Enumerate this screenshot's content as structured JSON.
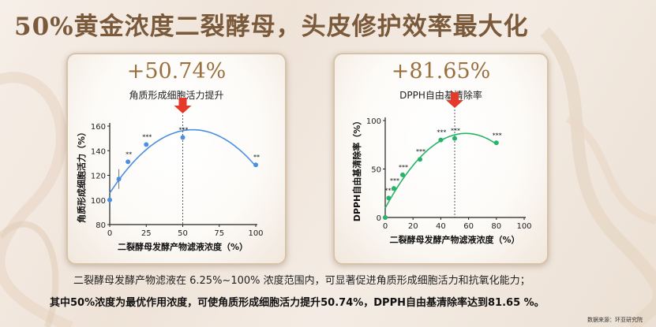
{
  "title": "50%黄金浓度二裂酵母，头皮修护效率最大化",
  "paragraph1": "二裂酵母发酵产物滤液在 6.25%~100% 浓度范围内，可显著促进角质形成细胞活力和抗氧化能力；",
  "paragraph2": "其中50%浓度为最优作用浓度，可使角质形成细胞活力提升50.74%，DPPH自由基清除率达到81.65 %。",
  "source": "数据来源：环亚研究院",
  "colors": {
    "accent": "#9a6f3c",
    "arrow": "#e53a2a",
    "series1": "#4a8fe0",
    "series2": "#27b36a"
  },
  "chart_data": [
    {
      "type": "scatter",
      "highlight": "+50.74%",
      "metric": "角质形成细胞活力提升",
      "xlabel": "二裂酵母发酵产物滤液浓度（%）",
      "ylabel": "角质形成细胞活力（%）",
      "xlim": [
        0,
        100
      ],
      "ylim": [
        80,
        160
      ],
      "xticks": [
        0,
        25,
        50,
        75,
        100
      ],
      "yticks": [
        80,
        100,
        120,
        140,
        160
      ],
      "x": [
        0,
        6.25,
        12.5,
        25,
        50,
        100
      ],
      "y": [
        100,
        117,
        131,
        145,
        150.7,
        128.5
      ],
      "error": [
        0,
        8,
        0,
        0,
        0,
        0
      ],
      "significance": [
        "",
        "",
        "**",
        "***",
        "***",
        "**"
      ],
      "arrow_at": 50
    },
    {
      "type": "scatter",
      "highlight": "+81.65%",
      "metric": "DPPH自由基清除率",
      "xlabel": "二裂酵母发酵产物滤液浓度（%）",
      "ylabel": "DPPH自由基清除率（%）",
      "xlim": [
        0,
        100
      ],
      "ylim": [
        0,
        100
      ],
      "xticks": [
        0,
        20,
        40,
        60,
        80,
        100
      ],
      "yticks": [
        0,
        50,
        100
      ],
      "x": [
        0,
        2.5,
        6.25,
        12.5,
        25,
        40,
        50,
        80
      ],
      "y": [
        0,
        20,
        30,
        44,
        60,
        80,
        81.65,
        77
      ],
      "error": [
        0,
        0,
        0,
        0,
        0,
        0,
        0,
        0
      ],
      "significance": [
        "",
        "***",
        "***",
        "***",
        "***",
        "***",
        "***",
        "***"
      ],
      "arrow_at": 50
    }
  ]
}
